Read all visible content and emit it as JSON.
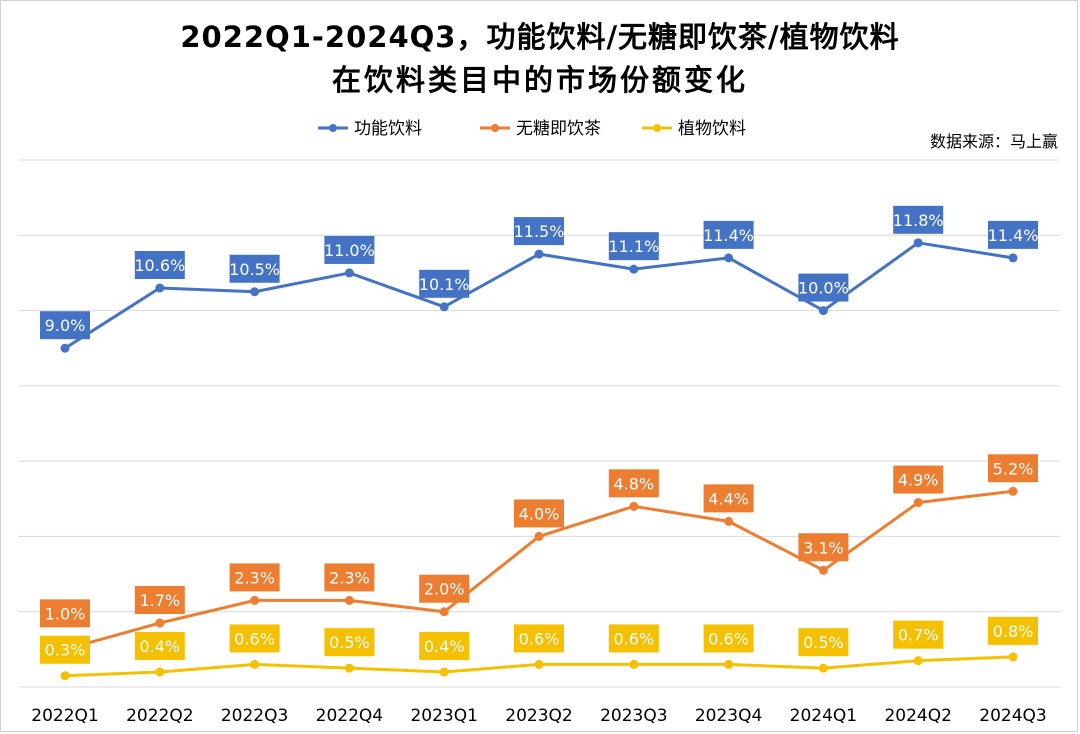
{
  "title_line1": "2022Q1-2024Q3，功能饮料/无糖即饮茶/植物饮料",
  "title_line2": "在饮料类目中的市场份额变化",
  "source": "数据来源：马上赢",
  "colors": {
    "series": [
      "#4472C4",
      "#ED7D31",
      "#F5C000"
    ],
    "grid": "#D9D9D9",
    "label_text": "#ffffff"
  },
  "chart_data": {
    "type": "line",
    "title": "2022Q1-2024Q3，功能饮料/无糖即饮茶/植物饮料在饮料类目中的市场份额变化",
    "categories": [
      "2022Q1",
      "2022Q2",
      "2022Q3",
      "2022Q4",
      "2023Q1",
      "2023Q2",
      "2023Q3",
      "2023Q4",
      "2024Q1",
      "2024Q2",
      "2024Q3"
    ],
    "legend_position": "top",
    "grid": true,
    "y_axis_labels_visible": false,
    "value_suffix": "%",
    "ylim": [
      0,
      14
    ],
    "series": [
      {
        "name": "功能饮料",
        "values": [
          9.0,
          10.6,
          10.5,
          11.0,
          10.1,
          11.5,
          11.1,
          11.4,
          10.0,
          11.8,
          11.4
        ]
      },
      {
        "name": "无糖即饮茶",
        "values": [
          1.0,
          1.7,
          2.3,
          2.3,
          2.0,
          4.0,
          4.8,
          4.4,
          3.1,
          4.9,
          5.2
        ]
      },
      {
        "name": "植物饮料",
        "values": [
          0.3,
          0.4,
          0.6,
          0.5,
          0.4,
          0.6,
          0.6,
          0.6,
          0.5,
          0.7,
          0.8
        ]
      }
    ]
  }
}
